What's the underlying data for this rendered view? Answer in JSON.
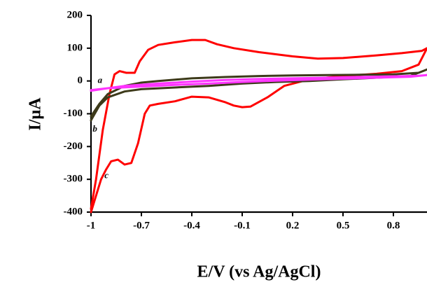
{
  "chart_data": {
    "type": "line",
    "xlabel": "E/V (vs Ag/AgCl)",
    "ylabel": "I/µA",
    "xlim": [
      -1.0,
      1.0
    ],
    "ylim": [
      -400,
      200
    ],
    "x_ticks": [
      -1.0,
      -0.7,
      -0.4,
      -0.1,
      0.2,
      0.5,
      0.8
    ],
    "x_tick_labels": [
      "-1",
      "-0.7",
      "-0.4",
      "-0.1",
      "0.2",
      "0.5",
      "0.8"
    ],
    "y_ticks": [
      200,
      100,
      0,
      -100,
      -200,
      -300,
      -400
    ],
    "y_tick_labels": [
      "200",
      "100",
      "0",
      "-100",
      "-200",
      "-300",
      "-400"
    ],
    "grid": false,
    "legend": "none",
    "series": [
      {
        "name": "c",
        "color": "#ff0000",
        "x": [
          -1.0,
          -0.97,
          -0.93,
          -0.89,
          -0.86,
          -0.83,
          -0.79,
          -0.74,
          -0.71,
          -0.66,
          -0.6,
          -0.5,
          -0.4,
          -0.32,
          -0.25,
          -0.15,
          0.0,
          0.2,
          0.35,
          0.5,
          0.7,
          0.85,
          0.97,
          1.0,
          0.95,
          0.85,
          0.7,
          0.5,
          0.3,
          0.15,
          0.05,
          -0.05,
          -0.1,
          -0.15,
          -0.2,
          -0.3,
          -0.4,
          -0.5,
          -0.6,
          -0.65,
          -0.68,
          -0.72,
          -0.76,
          -0.8,
          -0.84,
          -0.88,
          -0.91,
          -0.94,
          -0.97,
          -1.0
        ],
        "y": [
          -390,
          -300,
          -150,
          -40,
          20,
          30,
          25,
          25,
          60,
          95,
          110,
          118,
          125,
          125,
          112,
          100,
          88,
          75,
          68,
          70,
          78,
          85,
          92,
          100,
          50,
          30,
          22,
          15,
          5,
          -15,
          -50,
          -78,
          -80,
          -75,
          -65,
          -50,
          -48,
          -62,
          -70,
          -75,
          -100,
          -190,
          -250,
          -255,
          -240,
          -245,
          -270,
          -300,
          -350,
          -400
        ]
      },
      {
        "name": "b",
        "color": "#3d3a1a",
        "x": [
          -1.0,
          -0.95,
          -0.9,
          -0.8,
          -0.7,
          -0.6,
          -0.4,
          -0.2,
          0.0,
          0.2,
          0.4,
          0.6,
          0.8,
          0.95,
          1.0,
          0.9,
          0.7,
          0.5,
          0.3,
          0.1,
          -0.1,
          -0.3,
          -0.5,
          -0.7,
          -0.8,
          -0.9,
          -0.95,
          -1.0
        ],
        "y": [
          -108,
          -70,
          -40,
          -15,
          -5,
          0,
          8,
          12,
          15,
          17,
          18,
          19,
          20,
          25,
          35,
          15,
          10,
          5,
          0,
          -3,
          -8,
          -15,
          -20,
          -25,
          -32,
          -50,
          -75,
          -120
        ]
      },
      {
        "name": "a",
        "color": "#ff33ff",
        "x": [
          -1.0,
          -0.9,
          -0.8,
          -0.6,
          -0.4,
          -0.2,
          0.0,
          0.2,
          0.4,
          0.6,
          0.8,
          0.95,
          1.0,
          0.9,
          0.7,
          0.5,
          0.3,
          0.1,
          -0.1,
          -0.3,
          -0.5,
          -0.7,
          -0.9,
          -1.0
        ],
        "y": [
          -28,
          -22,
          -15,
          -8,
          -2,
          3,
          6,
          8,
          10,
          12,
          14,
          16,
          18,
          13,
          10,
          7,
          4,
          1,
          -3,
          -8,
          -12,
          -17,
          -22,
          -30
        ]
      }
    ],
    "annotations": [
      {
        "text": "a",
        "x": -0.96,
        "y": 0
      },
      {
        "text": "b",
        "x": -0.99,
        "y": -148
      },
      {
        "text": "c",
        "x": -0.92,
        "y": -290
      }
    ]
  }
}
